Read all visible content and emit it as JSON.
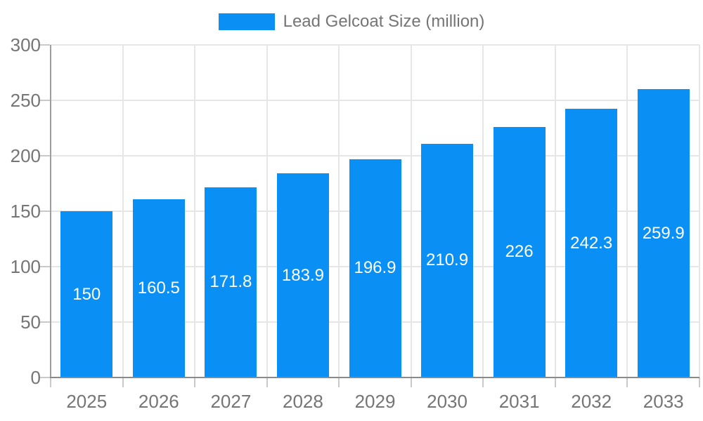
{
  "chart_data": {
    "type": "bar",
    "title": "",
    "series_name": "Lead Gelcoat Size (million)",
    "categories": [
      "2025",
      "2026",
      "2027",
      "2028",
      "2029",
      "2030",
      "2031",
      "2032",
      "2033"
    ],
    "values": [
      150,
      160.5,
      171.8,
      183.9,
      196.9,
      210.9,
      226,
      242.3,
      259.9
    ],
    "bar_labels": [
      "150",
      "160.5",
      "171.8",
      "183.9",
      "196.9",
      "210.9",
      "226",
      "242.3",
      "259.9"
    ],
    "xlabel": "",
    "ylabel": "",
    "ylim": [
      0,
      300
    ],
    "yticks": [
      0,
      50,
      100,
      150,
      200,
      250,
      300
    ],
    "ytick_labels": [
      "0",
      "50",
      "100",
      "150",
      "200",
      "250",
      "300"
    ],
    "grid": true,
    "legend_position": "top",
    "colors": {
      "bar": "#0a90f5",
      "bar_label": "#ffffff",
      "axis_text": "#757575",
      "gridline": "#e6e6e6",
      "axis_line_y": "#9e9e9e",
      "axis_line_x": "#8a8a8a",
      "tick": "#c9c9c9",
      "background": "#ffffff"
    }
  }
}
